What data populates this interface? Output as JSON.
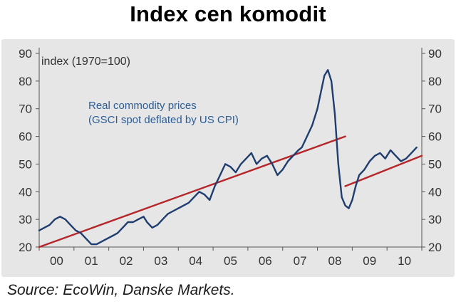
{
  "page": {
    "title": "Index cen komodit",
    "source": "Source: EcoWin, Danske Markets."
  },
  "colors": {
    "background": "#e6e6e6",
    "series": "#1f3d6e",
    "trend": "#b5262b",
    "text": "#333333",
    "annotation": "#2b5d98"
  },
  "chart_data": {
    "type": "line",
    "title": "Index cen komodit",
    "unit_label": "index (1970=100)",
    "annotation_lines": [
      "Real commodity prices",
      "(GSCI spot deflated by US CPI)"
    ],
    "xlabel": "",
    "ylabel": "",
    "xlim": [
      2000,
      2011
    ],
    "ylim": [
      20,
      90
    ],
    "y_ticks": [
      20,
      30,
      40,
      50,
      60,
      70,
      80,
      90
    ],
    "y_tick_labels": [
      "20",
      "30",
      "40",
      "50",
      "60",
      "70",
      "80",
      "90"
    ],
    "x_ticks": [
      2000,
      2001,
      2002,
      2003,
      2004,
      2005,
      2006,
      2007,
      2008,
      2009,
      2010
    ],
    "x_tick_labels": [
      "00",
      "01",
      "02",
      "03",
      "04",
      "05",
      "06",
      "07",
      "08",
      "09",
      "10"
    ],
    "series": [
      {
        "name": "Real commodity prices (GSCI spot deflated by US CPI)",
        "x": [
          2000.0,
          2000.15,
          2000.3,
          2000.45,
          2000.6,
          2000.75,
          2000.9,
          2001.05,
          2001.2,
          2001.35,
          2001.5,
          2001.65,
          2001.8,
          2001.95,
          2002.1,
          2002.25,
          2002.4,
          2002.55,
          2002.7,
          2002.85,
          2003.0,
          2003.1,
          2003.25,
          2003.4,
          2003.55,
          2003.7,
          2003.85,
          2004.0,
          2004.15,
          2004.3,
          2004.45,
          2004.6,
          2004.75,
          2004.9,
          2005.05,
          2005.2,
          2005.35,
          2005.5,
          2005.65,
          2005.8,
          2005.95,
          2006.1,
          2006.25,
          2006.4,
          2006.55,
          2006.7,
          2006.85,
          2007.0,
          2007.15,
          2007.3,
          2007.45,
          2007.55,
          2007.7,
          2007.85,
          2008.0,
          2008.1,
          2008.2,
          2008.3,
          2008.4,
          2008.5,
          2008.6,
          2008.7,
          2008.8,
          2008.9,
          2009.0,
          2009.1,
          2009.2,
          2009.35,
          2009.5,
          2009.65,
          2009.8,
          2009.95,
          2010.1,
          2010.25,
          2010.4,
          2010.55,
          2010.7,
          2010.85
        ],
        "values": [
          26,
          27,
          28,
          30,
          31,
          30,
          28,
          26,
          25,
          23,
          21,
          21,
          22,
          23,
          24,
          25,
          27,
          29,
          29,
          30,
          31,
          29,
          27,
          28,
          30,
          32,
          33,
          34,
          35,
          36,
          38,
          40,
          39,
          37,
          42,
          46,
          50,
          49,
          47,
          50,
          52,
          54,
          50,
          52,
          53,
          50,
          46,
          48,
          51,
          53,
          55,
          56,
          60,
          64,
          70,
          76,
          82,
          84,
          80,
          68,
          50,
          38,
          35,
          34,
          37,
          42,
          46,
          48,
          51,
          53,
          54,
          52,
          55,
          53,
          51,
          52,
          54,
          56
        ]
      }
    ],
    "trend_lines": [
      {
        "name": "trend 2000-2008",
        "x": [
          2000.0,
          2008.8
        ],
        "values": [
          20,
          60
        ]
      },
      {
        "name": "trend 2008-2011",
        "x": [
          2008.8,
          2011.0
        ],
        "values": [
          42,
          53
        ]
      }
    ]
  }
}
